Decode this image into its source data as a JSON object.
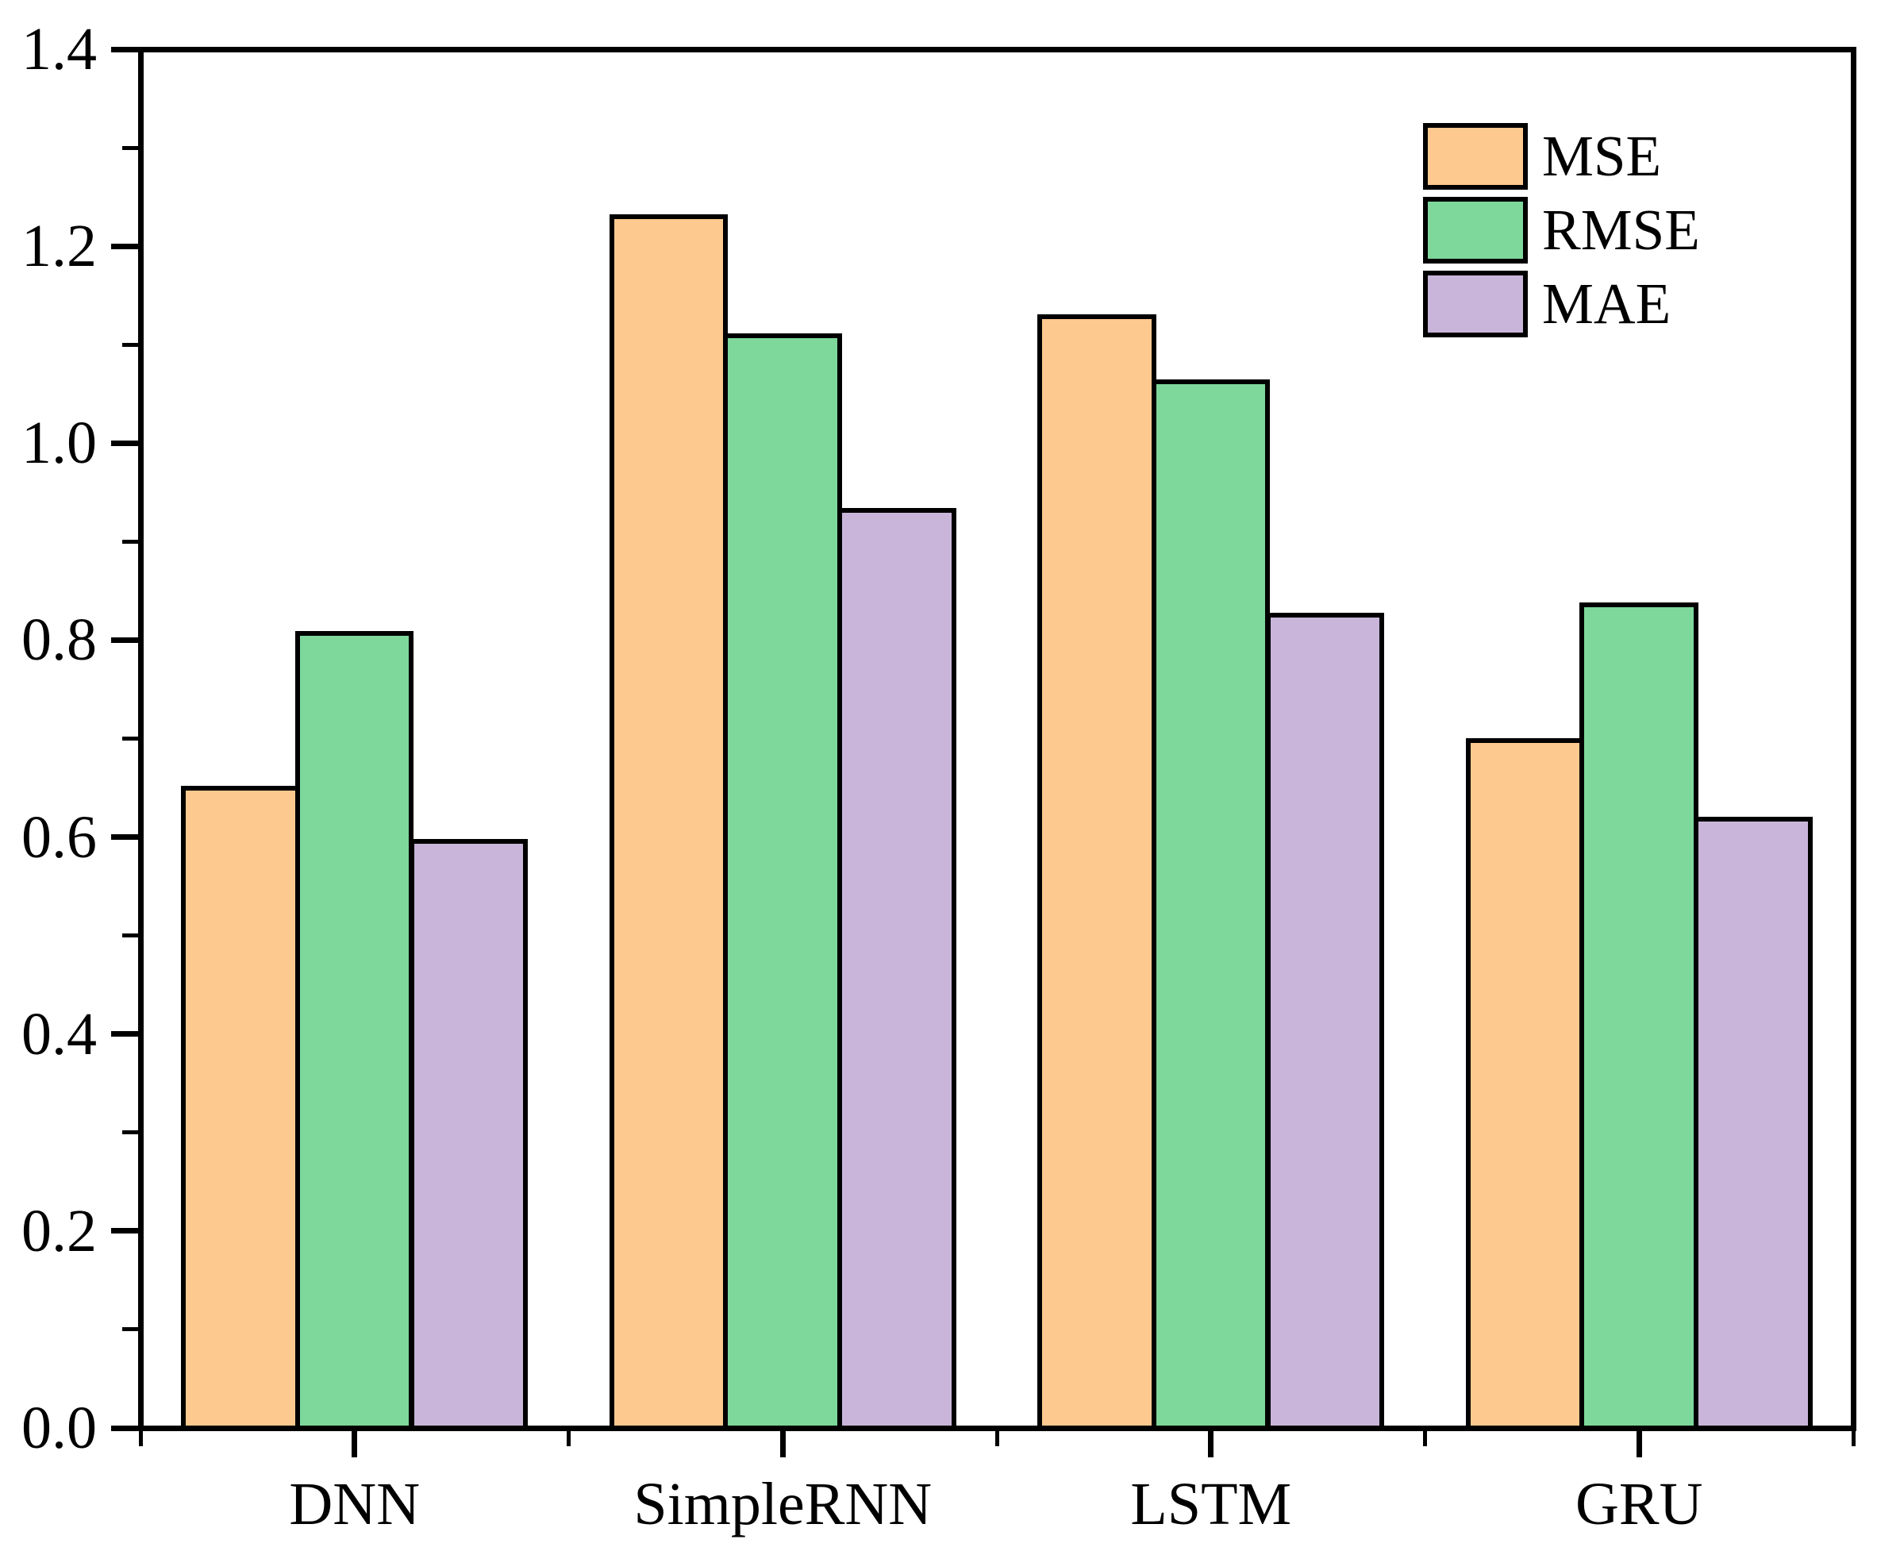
{
  "chart_data": {
    "type": "bar",
    "title": "",
    "xlabel": "",
    "ylabel": "",
    "categories": [
      "DNN",
      "SimpleRNN",
      "LSTM",
      "GRU"
    ],
    "series": [
      {
        "name": "MSE",
        "color": "#FDC98F",
        "values": [
          0.65,
          1.23,
          1.128,
          0.698
        ]
      },
      {
        "name": "RMSE",
        "color": "#7ED79B",
        "values": [
          0.807,
          1.109,
          1.062,
          0.836
        ]
      },
      {
        "name": "MAE",
        "color": "#C9B5D9",
        "values": [
          0.596,
          0.932,
          0.825,
          0.618
        ]
      }
    ],
    "ylim": [
      0,
      1.4
    ],
    "y_major_tick_labels": [
      "0.0",
      "0.2",
      "0.4",
      "0.6",
      "0.8",
      "1.0",
      "1.2",
      "1.4"
    ],
    "y_minor_tick_step": 0.1,
    "grid": false,
    "legend": {
      "position": "top-right",
      "entries": [
        "MSE",
        "RMSE",
        "MAE"
      ]
    },
    "bar_edge_color": "#000000",
    "axis_color": "#000000",
    "background_color": "#FFFFFF"
  }
}
